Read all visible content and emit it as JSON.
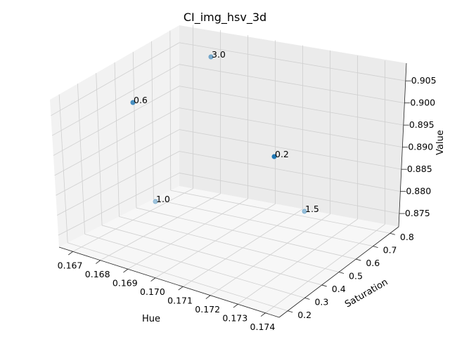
{
  "chart_data": {
    "type": "scatter",
    "title": "CI_img_hsv_3d",
    "xlabel": "Hue",
    "ylabel": "Saturation",
    "zlabel": "Value",
    "xlim": [
      0.1665,
      0.1745
    ],
    "ylim": [
      0.15,
      0.85
    ],
    "zlim": [
      0.872,
      0.909
    ],
    "x_ticks": [
      "0.167",
      "0.168",
      "0.169",
      "0.170",
      "0.171",
      "0.172",
      "0.173",
      "0.174"
    ],
    "y_ticks": [
      "0.2",
      "0.3",
      "0.4",
      "0.5",
      "0.6",
      "0.7",
      "0.8"
    ],
    "z_ticks": [
      "0.875",
      "0.880",
      "0.885",
      "0.890",
      "0.895",
      "0.900",
      "0.905"
    ],
    "marker_color": "#1f77b4",
    "points": [
      {
        "label": "3.0",
        "x": 0.1668,
        "y": 0.82,
        "z": 0.906
      },
      {
        "label": "0.6",
        "x": 0.1675,
        "y": 0.2,
        "z": 0.904
      },
      {
        "label": "0.2",
        "x": 0.174,
        "y": 0.45,
        "z": 0.895
      },
      {
        "label": "1.0",
        "x": 0.1692,
        "y": 0.21,
        "z": 0.879
      },
      {
        "label": "1.5",
        "x": 0.1741,
        "y": 0.22,
        "z": 0.889
      }
    ]
  }
}
